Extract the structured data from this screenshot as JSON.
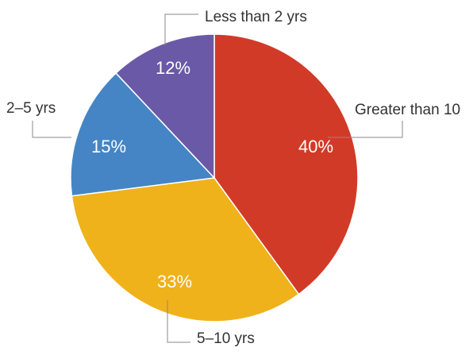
{
  "chart_data": {
    "type": "pie",
    "title": "",
    "start_angle_deg": 0,
    "direction": "clockwise",
    "slices": [
      {
        "label": "Greater than 10",
        "value": 40,
        "display": "40%",
        "color": "#d23a28"
      },
      {
        "label": "5–10 yrs",
        "value": 33,
        "display": "33%",
        "color": "#efb21a"
      },
      {
        "label": "2–5 yrs",
        "value": 15,
        "display": "15%",
        "color": "#4585c5"
      },
      {
        "label": "Less than 2 yrs",
        "value": 12,
        "display": "12%",
        "color": "#6a59a6"
      }
    ]
  }
}
